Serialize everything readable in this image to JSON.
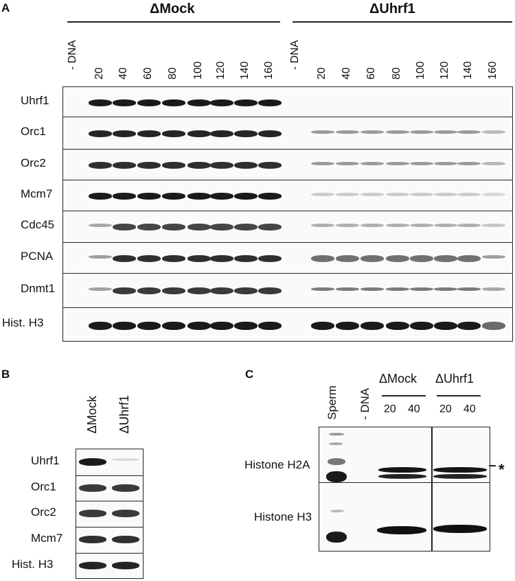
{
  "panelA": {
    "letter": "A",
    "groups": [
      {
        "title": "ΔMock"
      },
      {
        "title": "ΔUhrf1"
      }
    ],
    "lanes": [
      "- DNA",
      "20",
      "40",
      "60",
      "80",
      "100",
      "120",
      "140",
      "160",
      "- DNA",
      "20",
      "40",
      "60",
      "80",
      "100",
      "120",
      "140",
      "160"
    ],
    "rows": [
      "Uhrf1",
      "Orc1",
      "Orc2",
      "Mcm7",
      "Cdc45",
      "PCNA",
      "Dnmt1",
      "Hist. H3"
    ]
  },
  "panelB": {
    "letter": "B",
    "lanes": [
      "ΔMock",
      "ΔUhrf1"
    ],
    "rows": [
      "Uhrf1",
      "Orc1",
      "Orc2",
      "Mcm7",
      "Hist. H3"
    ]
  },
  "panelC": {
    "letter": "C",
    "lanes": [
      "Sperm",
      "- DNA"
    ],
    "groups": [
      {
        "title": "ΔMock",
        "timepoints": [
          "20",
          "40"
        ]
      },
      {
        "title": "ΔUhrf1",
        "timepoints": [
          "20",
          "40"
        ]
      }
    ],
    "rows": [
      "Histone H2A",
      "Histone H3"
    ],
    "marker": "*"
  }
}
